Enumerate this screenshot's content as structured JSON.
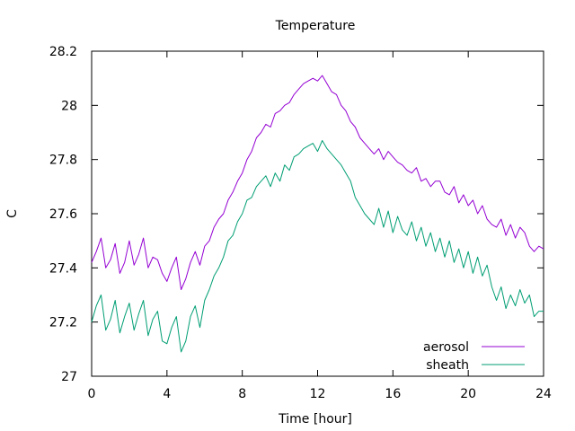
{
  "chart_data": {
    "type": "line",
    "title": "Temperature",
    "xlabel": "Time [hour]",
    "ylabel": "C",
    "xlim": [
      0,
      24
    ],
    "ylim": [
      27.0,
      28.2
    ],
    "xticks": [
      0,
      4,
      8,
      12,
      16,
      20,
      24
    ],
    "yticks": [
      27,
      27.2,
      27.4,
      27.6,
      27.8,
      28,
      28.2
    ],
    "grid": false,
    "legend_position": "bottom-right",
    "series": [
      {
        "name": "aerosol",
        "color": "#9400d3",
        "x": [
          0,
          0.25,
          0.5,
          0.75,
          1,
          1.25,
          1.5,
          1.75,
          2,
          2.25,
          2.5,
          2.75,
          3,
          3.25,
          3.5,
          3.75,
          4,
          4.25,
          4.5,
          4.75,
          5,
          5.25,
          5.5,
          5.75,
          6,
          6.25,
          6.5,
          6.75,
          7,
          7.25,
          7.5,
          7.75,
          8,
          8.25,
          8.5,
          8.75,
          9,
          9.25,
          9.5,
          9.75,
          10,
          10.25,
          10.5,
          10.75,
          11,
          11.25,
          11.5,
          11.75,
          12,
          12.25,
          12.5,
          12.75,
          13,
          13.25,
          13.5,
          13.75,
          14,
          14.25,
          14.5,
          14.75,
          15,
          15.25,
          15.5,
          15.75,
          16,
          16.25,
          16.5,
          16.75,
          17,
          17.25,
          17.5,
          17.75,
          18,
          18.25,
          18.5,
          18.75,
          19,
          19.25,
          19.5,
          19.75,
          20,
          20.25,
          20.5,
          20.75,
          21,
          21.25,
          21.5,
          21.75,
          22,
          22.25,
          22.5,
          22.75,
          23,
          23.25,
          23.5,
          23.75,
          24
        ],
        "values": [
          27.42,
          27.46,
          27.51,
          27.4,
          27.43,
          27.49,
          27.38,
          27.42,
          27.5,
          27.41,
          27.45,
          27.51,
          27.4,
          27.44,
          27.43,
          27.38,
          27.35,
          27.4,
          27.44,
          27.32,
          27.36,
          27.42,
          27.46,
          27.41,
          27.48,
          27.5,
          27.55,
          27.58,
          27.6,
          27.65,
          27.68,
          27.72,
          27.75,
          27.8,
          27.83,
          27.88,
          27.9,
          27.93,
          27.92,
          27.97,
          27.98,
          28.0,
          28.01,
          28.04,
          28.06,
          28.08,
          28.09,
          28.1,
          28.09,
          28.11,
          28.08,
          28.05,
          28.04,
          28.0,
          27.98,
          27.94,
          27.92,
          27.88,
          27.86,
          27.84,
          27.82,
          27.84,
          27.8,
          27.83,
          27.81,
          27.79,
          27.78,
          27.76,
          27.75,
          27.77,
          27.72,
          27.73,
          27.7,
          27.72,
          27.72,
          27.68,
          27.67,
          27.7,
          27.64,
          27.67,
          27.63,
          27.65,
          27.6,
          27.63,
          27.58,
          27.56,
          27.55,
          27.58,
          27.52,
          27.56,
          27.51,
          27.55,
          27.53,
          27.48,
          27.46,
          27.48,
          27.47
        ]
      },
      {
        "name": "sheath",
        "color": "#009e73",
        "x": [
          0,
          0.25,
          0.5,
          0.75,
          1,
          1.25,
          1.5,
          1.75,
          2,
          2.25,
          2.5,
          2.75,
          3,
          3.25,
          3.5,
          3.75,
          4,
          4.25,
          4.5,
          4.75,
          5,
          5.25,
          5.5,
          5.75,
          6,
          6.25,
          6.5,
          6.75,
          7,
          7.25,
          7.5,
          7.75,
          8,
          8.25,
          8.5,
          8.75,
          9,
          9.25,
          9.5,
          9.75,
          10,
          10.25,
          10.5,
          10.75,
          11,
          11.25,
          11.5,
          11.75,
          12,
          12.25,
          12.5,
          12.75,
          13,
          13.25,
          13.5,
          13.75,
          14,
          14.25,
          14.5,
          14.75,
          15,
          15.25,
          15.5,
          15.75,
          16,
          16.25,
          16.5,
          16.75,
          17,
          17.25,
          17.5,
          17.75,
          18,
          18.25,
          18.5,
          18.75,
          19,
          19.25,
          19.5,
          19.75,
          20,
          20.25,
          20.5,
          20.75,
          21,
          21.25,
          21.5,
          21.75,
          22,
          22.25,
          22.5,
          22.75,
          23,
          23.25,
          23.5,
          23.75,
          24
        ],
        "values": [
          27.2,
          27.26,
          27.3,
          27.17,
          27.21,
          27.28,
          27.16,
          27.22,
          27.27,
          27.17,
          27.23,
          27.28,
          27.15,
          27.21,
          27.24,
          27.13,
          27.12,
          27.18,
          27.22,
          27.09,
          27.13,
          27.22,
          27.26,
          27.18,
          27.28,
          27.32,
          27.37,
          27.4,
          27.44,
          27.5,
          27.52,
          27.57,
          27.6,
          27.65,
          27.66,
          27.7,
          27.72,
          27.74,
          27.7,
          27.75,
          27.72,
          27.78,
          27.76,
          27.81,
          27.82,
          27.84,
          27.85,
          27.86,
          27.83,
          27.87,
          27.84,
          27.82,
          27.8,
          27.78,
          27.75,
          27.72,
          27.66,
          27.63,
          27.6,
          27.58,
          27.56,
          27.62,
          27.55,
          27.61,
          27.53,
          27.59,
          27.54,
          27.52,
          27.57,
          27.5,
          27.55,
          27.48,
          27.53,
          27.46,
          27.51,
          27.44,
          27.5,
          27.42,
          27.47,
          27.4,
          27.46,
          27.38,
          27.44,
          27.37,
          27.41,
          27.33,
          27.28,
          27.33,
          27.25,
          27.3,
          27.26,
          27.32,
          27.27,
          27.3,
          27.22,
          27.24,
          27.24
        ]
      }
    ]
  }
}
